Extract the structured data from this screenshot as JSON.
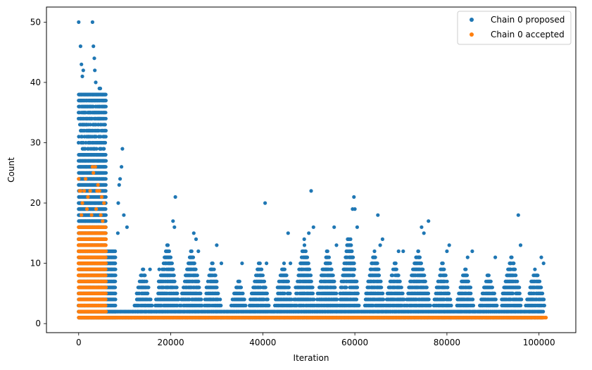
{
  "chart_data": {
    "type": "scatter",
    "title": "",
    "xlabel": "Iteration",
    "ylabel": "Count",
    "xlim": [
      -7000,
      108000
    ],
    "ylim": [
      -1.5,
      52.5
    ],
    "xticks": [
      0,
      20000,
      40000,
      60000,
      80000,
      100000
    ],
    "yticks": [
      0,
      10,
      20,
      30,
      40,
      50
    ],
    "grid": false,
    "legend_position": "upper-right",
    "series": [
      {
        "name": "Chain 0 proposed",
        "color": "#1f77b4",
        "bands": [
          {
            "x_start": 0,
            "x_end": 6000,
            "y_min": 1,
            "y_max": 38
          },
          {
            "x_start": 6000,
            "x_end": 8000,
            "y_min": 1,
            "y_max": 12
          },
          {
            "x_start": 8000,
            "x_end": 101000,
            "y_min": 1,
            "y_max": 2
          }
        ],
        "extremes": [
          [
            0,
            50
          ],
          [
            400,
            46
          ],
          [
            600,
            43
          ],
          [
            1000,
            42
          ],
          [
            800,
            41
          ],
          [
            3000,
            50
          ],
          [
            3200,
            46
          ],
          [
            3400,
            44
          ],
          [
            3500,
            42
          ],
          [
            3700,
            40
          ],
          [
            4500,
            39
          ],
          [
            4700,
            39
          ],
          [
            9500,
            29
          ],
          [
            9300,
            26
          ],
          [
            9000,
            24
          ],
          [
            8800,
            23
          ],
          [
            8600,
            20
          ],
          [
            9800,
            18
          ],
          [
            10500,
            16
          ],
          [
            8500,
            15
          ],
          [
            14000,
            6
          ],
          [
            15500,
            9
          ],
          [
            17500,
            9
          ],
          [
            20500,
            17
          ],
          [
            20800,
            16
          ],
          [
            21000,
            21
          ],
          [
            25000,
            15
          ],
          [
            25500,
            14
          ],
          [
            26000,
            12
          ],
          [
            30000,
            13
          ],
          [
            31000,
            10
          ],
          [
            35500,
            10
          ],
          [
            40500,
            20
          ],
          [
            40800,
            10
          ],
          [
            45500,
            15
          ],
          [
            46000,
            10
          ],
          [
            49000,
            14
          ],
          [
            50000,
            15
          ],
          [
            50500,
            22
          ],
          [
            51000,
            16
          ],
          [
            55500,
            16
          ],
          [
            56000,
            13
          ],
          [
            59500,
            19
          ],
          [
            59800,
            21
          ],
          [
            60000,
            19
          ],
          [
            60500,
            16
          ],
          [
            65000,
            18
          ],
          [
            65500,
            13
          ],
          [
            66000,
            14
          ],
          [
            69500,
            12
          ],
          [
            70500,
            12
          ],
          [
            74500,
            16
          ],
          [
            75000,
            15
          ],
          [
            76000,
            17
          ],
          [
            80000,
            12
          ],
          [
            80500,
            13
          ],
          [
            84500,
            11
          ],
          [
            85500,
            12
          ],
          [
            90500,
            11
          ],
          [
            95500,
            18
          ],
          [
            96000,
            13
          ],
          [
            100500,
            11
          ],
          [
            101000,
            10
          ]
        ],
        "clusters": [
          {
            "x_start": 12000,
            "x_end": 16000,
            "peak": 9
          },
          {
            "x_start": 16500,
            "x_end": 22000,
            "peak": 13
          },
          {
            "x_start": 22000,
            "x_end": 27000,
            "peak": 12
          },
          {
            "x_start": 27000,
            "x_end": 31000,
            "peak": 10
          },
          {
            "x_start": 33000,
            "x_end": 36500,
            "peak": 7
          },
          {
            "x_start": 37000,
            "x_end": 41500,
            "peak": 10
          },
          {
            "x_start": 42500,
            "x_end": 46500,
            "peak": 10
          },
          {
            "x_start": 46500,
            "x_end": 51500,
            "peak": 13
          },
          {
            "x_start": 51500,
            "x_end": 56500,
            "peak": 12
          },
          {
            "x_start": 56500,
            "x_end": 61000,
            "peak": 15
          },
          {
            "x_start": 62000,
            "x_end": 66500,
            "peak": 12
          },
          {
            "x_start": 66500,
            "x_end": 71000,
            "peak": 10
          },
          {
            "x_start": 71000,
            "x_end": 76500,
            "peak": 12
          },
          {
            "x_start": 77000,
            "x_end": 81000,
            "peak": 10
          },
          {
            "x_start": 82000,
            "x_end": 86000,
            "peak": 9
          },
          {
            "x_start": 87000,
            "x_end": 91000,
            "peak": 8
          },
          {
            "x_start": 91500,
            "x_end": 96500,
            "peak": 11
          },
          {
            "x_start": 97000,
            "x_end": 101500,
            "peak": 9
          }
        ]
      },
      {
        "name": "Chain 0 accepted",
        "color": "#ff7f0e",
        "bands": [
          {
            "x_start": 0,
            "x_end": 6000,
            "y_min": 1,
            "y_max": 16
          },
          {
            "x_start": 6000,
            "x_end": 101500,
            "y_min": 1,
            "y_max": 1
          }
        ],
        "extremes": [
          [
            0,
            24
          ],
          [
            200,
            22
          ],
          [
            400,
            22
          ],
          [
            1200,
            22
          ],
          [
            1500,
            24
          ],
          [
            2000,
            21
          ],
          [
            2500,
            22
          ],
          [
            3000,
            26
          ],
          [
            3200,
            25
          ],
          [
            3600,
            26
          ],
          [
            4000,
            22
          ],
          [
            4200,
            23
          ],
          [
            4500,
            22
          ],
          [
            5000,
            21
          ],
          [
            5500,
            20
          ],
          [
            800,
            20
          ],
          [
            1800,
            19
          ],
          [
            2800,
            18
          ],
          [
            3800,
            19
          ],
          [
            4800,
            18
          ],
          [
            5200,
            17
          ],
          [
            600,
            18
          ]
        ]
      }
    ]
  }
}
